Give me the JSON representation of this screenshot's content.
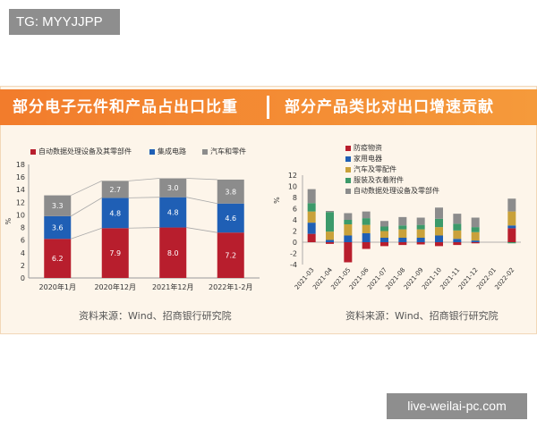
{
  "watermark_top": "TG: MYYJJPP",
  "watermark_bottom": "live-weilai-pc.com",
  "colors": {
    "red": "#b81e2d",
    "blue": "#1f5fb5",
    "gray": "#8c8c8c",
    "gold": "#c9a13a",
    "green": "#3c9a6a",
    "banner": "#f27c2c"
  },
  "left_panel": {
    "title": "部分电子元件和产品占出口比重",
    "source": "资料来源：Wind、招商银行研究院"
  },
  "right_panel": {
    "title": "部分产品类比对出口增速贡献",
    "source": "资料来源：Wind、招商银行研究院"
  },
  "chart_data": [
    {
      "type": "bar",
      "stacked": true,
      "categories": [
        "2020年1月",
        "2020年12月",
        "2021年12月",
        "2022年1-2月"
      ],
      "series": [
        {
          "name": "自动数据处理设备及其零部件",
          "color": "#b81e2d",
          "values": [
            6.2,
            7.9,
            8.0,
            7.2
          ]
        },
        {
          "name": "集成电路",
          "color": "#1f5fb5",
          "values": [
            3.6,
            4.8,
            4.8,
            4.6
          ]
        },
        {
          "name": "汽车和零件",
          "color": "#8c8c8c",
          "values": [
            3.3,
            2.7,
            3.0,
            3.8
          ]
        }
      ],
      "ylabel": "%",
      "ylim": [
        0,
        18
      ],
      "yticks": [
        0,
        2,
        4,
        6,
        8,
        10,
        12,
        14,
        16,
        18
      ],
      "legend_position": "top",
      "connector_lines": true
    },
    {
      "type": "bar",
      "stacked": true,
      "categories": [
        "2021-03",
        "2021-04",
        "2021-05",
        "2021-06",
        "2021-07",
        "2021-08",
        "2021-09",
        "2021-10",
        "2021-11",
        "2021-12",
        "2022-01",
        "2022-02"
      ],
      "series": [
        {
          "name": "防疫物资",
          "color": "#b81e2d",
          "values": [
            1.5,
            -0.3,
            -3.6,
            -1.2,
            -0.7,
            -0.5,
            -0.4,
            -0.7,
            -0.5,
            -0.2,
            0,
            2.5
          ]
        },
        {
          "name": "家用电器",
          "color": "#1f5fb5",
          "values": [
            2.0,
            0.4,
            1.2,
            1.6,
            0.8,
            0.8,
            0.8,
            1.2,
            0.6,
            0.3,
            0,
            0.5
          ]
        },
        {
          "name": "汽车及零配件",
          "color": "#c9a13a",
          "values": [
            2.0,
            1.5,
            2.0,
            1.5,
            1.2,
            1.5,
            1.5,
            1.5,
            1.5,
            1.5,
            0,
            2.5
          ]
        },
        {
          "name": "服装及衣着附件",
          "color": "#3c9a6a",
          "values": [
            1.5,
            3.5,
            0.8,
            1.2,
            0.8,
            0.7,
            0.8,
            1.5,
            1.2,
            0.9,
            0,
            -0.2
          ]
        },
        {
          "name": "自动数据处理设备及零部件",
          "color": "#8c8c8c",
          "values": [
            2.5,
            0.2,
            1.2,
            1.2,
            1.0,
            1.5,
            1.3,
            2.0,
            1.8,
            1.7,
            0,
            2.3
          ]
        }
      ],
      "ylabel": "%",
      "ylim": [
        -4,
        12
      ],
      "yticks": [
        -4,
        -2,
        0,
        2,
        4,
        6,
        8,
        10,
        12
      ],
      "legend_position": "top-left"
    }
  ]
}
